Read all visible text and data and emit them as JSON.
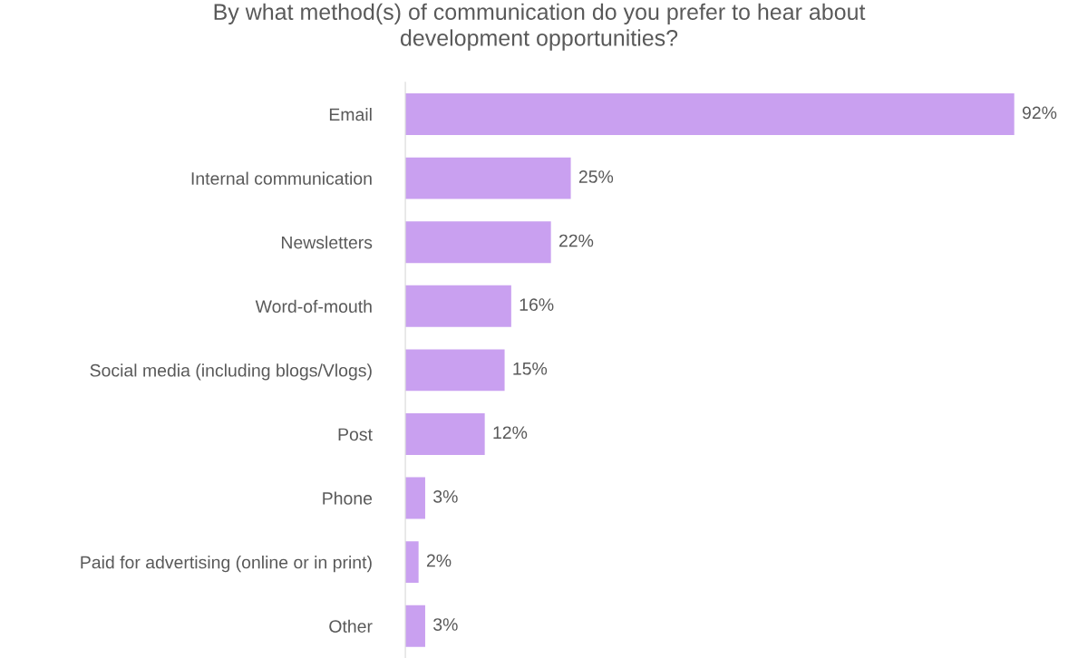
{
  "chart_data": {
    "type": "bar",
    "orientation": "horizontal",
    "title": "By what method(s) of communication do you prefer to hear about\ndevelopment opportunities?",
    "categories": [
      "Email",
      "Internal communication",
      "Newsletters",
      "Word-of-mouth",
      "Social media (including blogs/Vlogs)",
      "Post",
      "Phone",
      "Paid for advertising (online or in print)",
      "Other"
    ],
    "values": [
      92,
      25,
      22,
      16,
      15,
      12,
      3,
      2,
      3
    ],
    "value_labels": [
      "92%",
      "25%",
      "22%",
      "16%",
      "15%",
      "12%",
      "3%",
      "2%",
      "3%"
    ],
    "color": "#c9a0f0",
    "tick_labels": "y",
    "grid": false,
    "legend": false
  }
}
